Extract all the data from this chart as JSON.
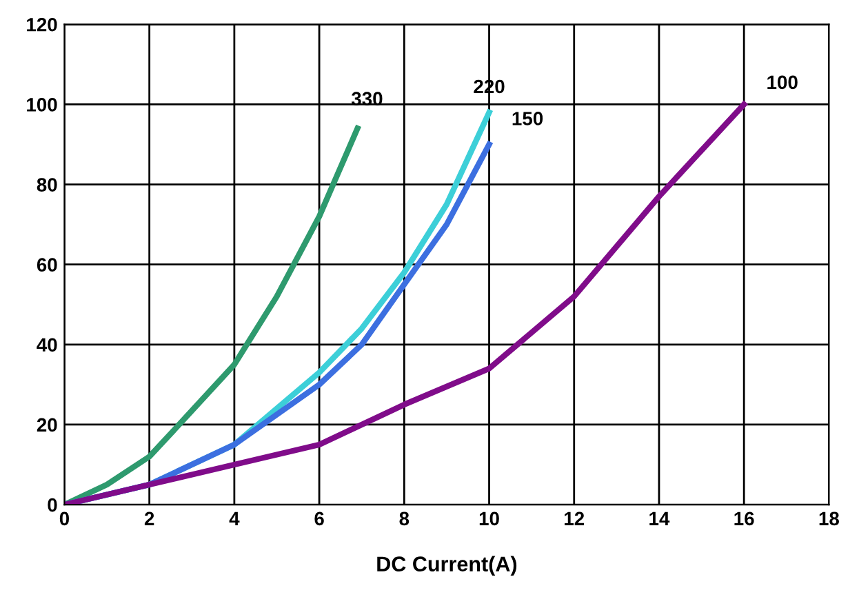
{
  "chart_data": {
    "type": "line",
    "xlabel": "DC Current(A)",
    "xlim": [
      0,
      18
    ],
    "ylim": [
      0,
      120
    ],
    "xticks": [
      0,
      2,
      4,
      6,
      8,
      10,
      12,
      14,
      16,
      18
    ],
    "yticks": [
      0,
      20,
      40,
      60,
      80,
      100,
      120
    ],
    "grid": true,
    "legend": false,
    "marker": "none",
    "line_style": "solid",
    "series": [
      {
        "name": "330",
        "color": "#2e9a6e",
        "x": [
          0,
          1,
          2,
          2.7,
          4,
          5,
          6,
          6.9
        ],
        "values": [
          0,
          5,
          12,
          20,
          35,
          52,
          72,
          94
        ]
      },
      {
        "name": "220",
        "color": "#3ccfd8",
        "x": [
          0,
          2,
          4,
          6,
          7,
          8,
          9,
          10
        ],
        "values": [
          0,
          5,
          15,
          33,
          44,
          58,
          75,
          98
        ]
      },
      {
        "name": "150",
        "color": "#3c6fe0",
        "x": [
          0,
          2,
          4,
          6,
          7,
          8,
          9,
          10
        ],
        "values": [
          0,
          5,
          15,
          30,
          40,
          55,
          70,
          90
        ]
      },
      {
        "name": "100",
        "color": "#800c8a",
        "x": [
          0,
          2,
          4,
          6,
          8,
          10,
          12,
          14,
          16
        ],
        "values": [
          0,
          5,
          10,
          15,
          25,
          34,
          52,
          77,
          100
        ]
      }
    ]
  }
}
